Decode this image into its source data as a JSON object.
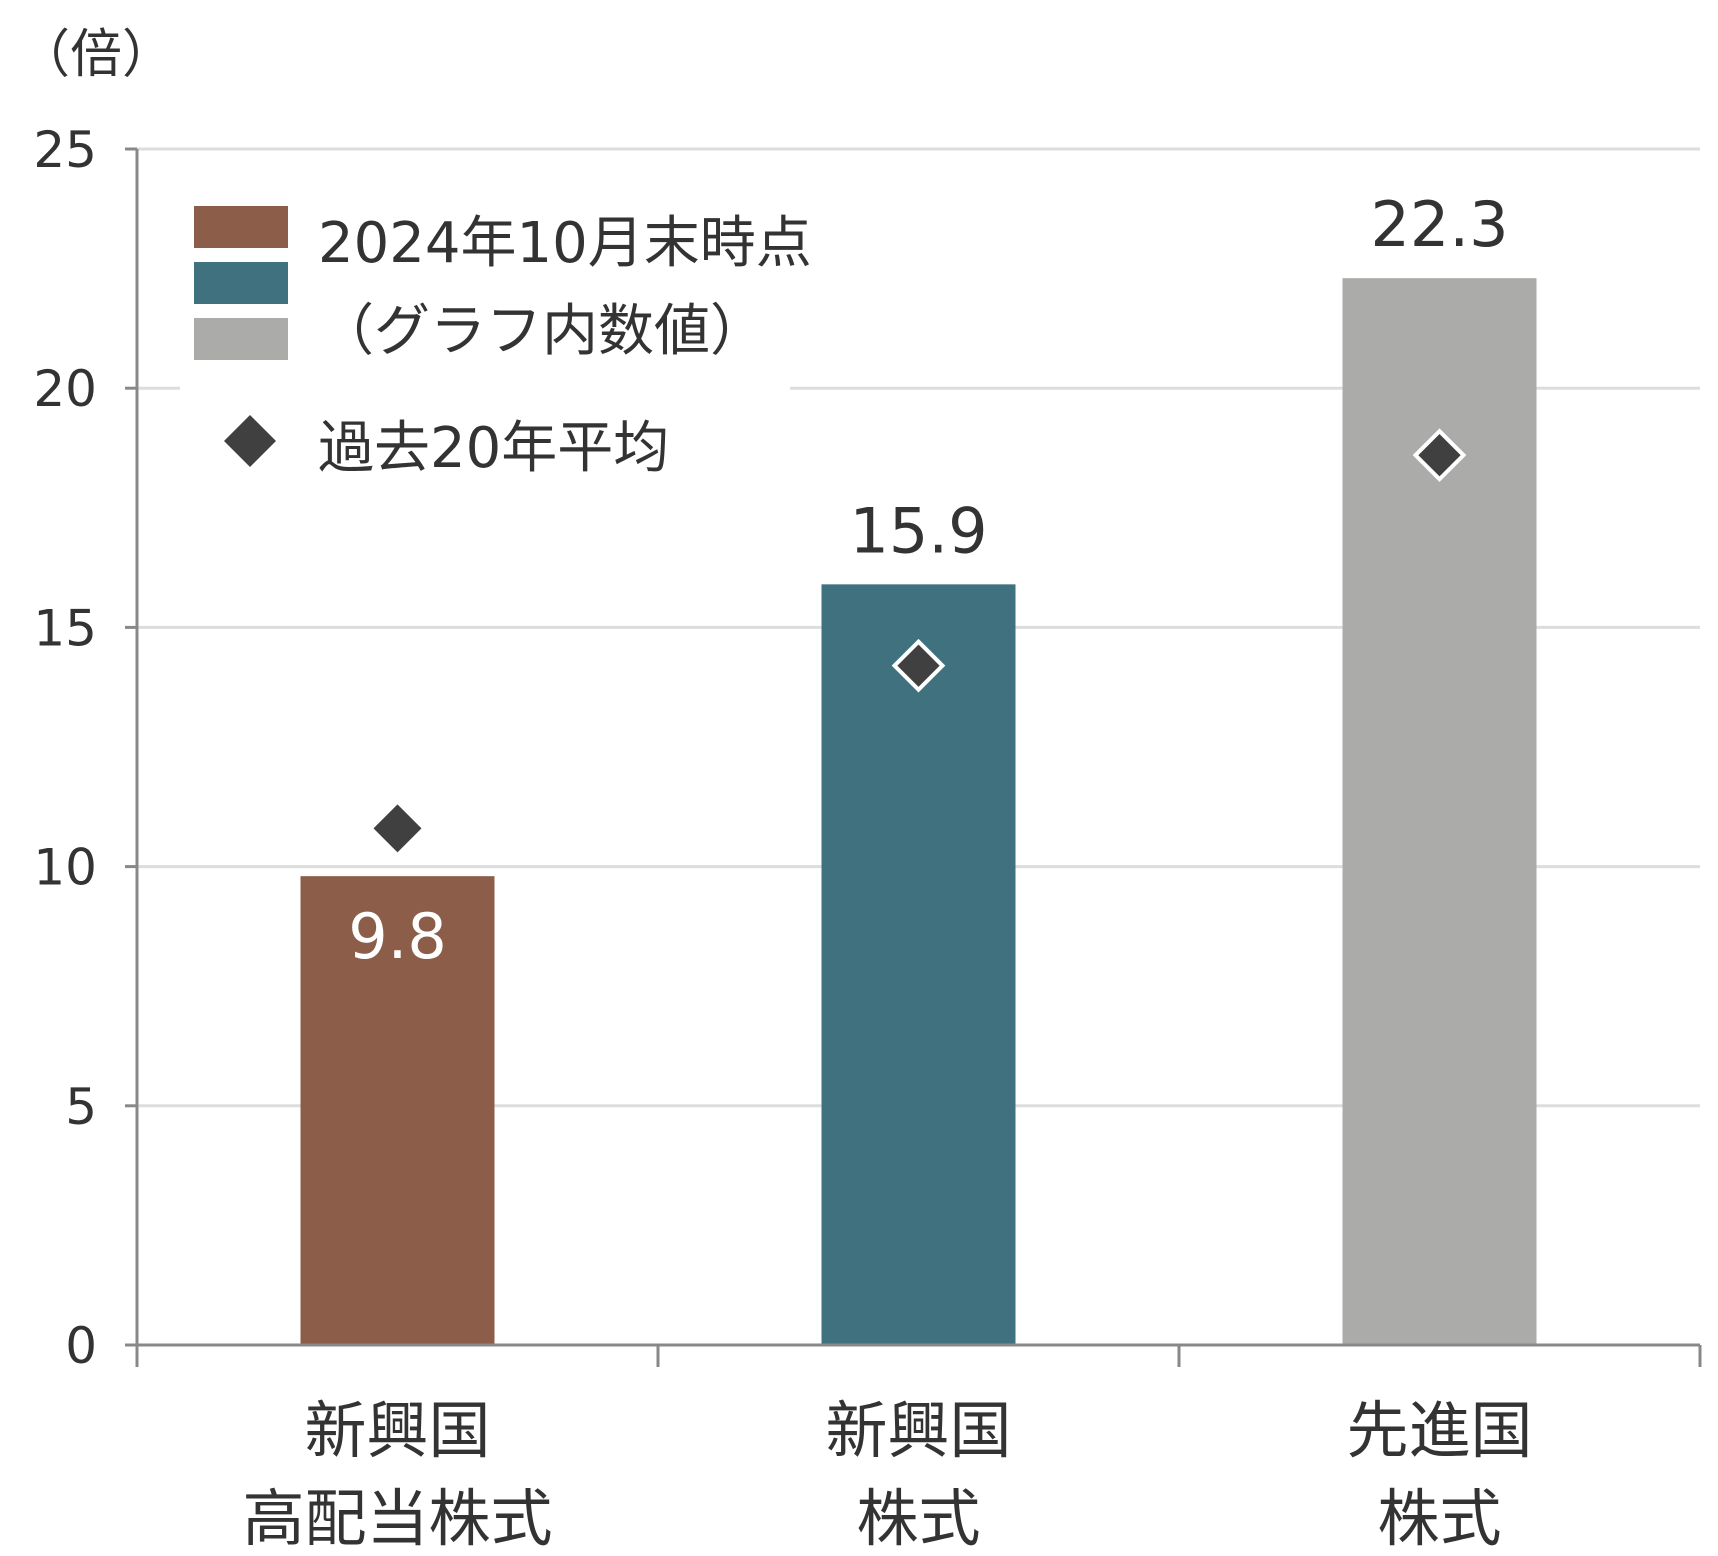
{
  "chart_data": {
    "type": "bar",
    "unit_label": "（倍）",
    "categories": [
      [
        "新興国",
        "高配当株式"
      ],
      [
        "新興国",
        "株式"
      ],
      [
        "先進国",
        "株式"
      ]
    ],
    "series": [
      {
        "name": "2024年10月末時点",
        "values": [
          9.8,
          15.9,
          22.3
        ],
        "colors": [
          "#8c5e4a",
          "#3f727e",
          "#abacaa"
        ],
        "value_labels": [
          "9.8",
          "15.9",
          "22.3"
        ]
      },
      {
        "name": "過去20年平均",
        "type": "marker",
        "marker": "diamond",
        "color": "#404040",
        "values": [
          10.8,
          14.2,
          18.6
        ]
      }
    ],
    "legend": {
      "bar_line1": "2024年10月末時点",
      "bar_line2": "（グラフ内数値）",
      "marker": "過去20年平均",
      "placement": "top-left"
    },
    "y_ticks": [
      "0",
      "5",
      "10",
      "15",
      "20",
      "25"
    ],
    "ylim": [
      0,
      25
    ],
    "grid": true,
    "colors": {
      "grid": "#dddddd",
      "axis": "#888888",
      "text": "#333333",
      "label_inside": "#ffffff"
    }
  }
}
